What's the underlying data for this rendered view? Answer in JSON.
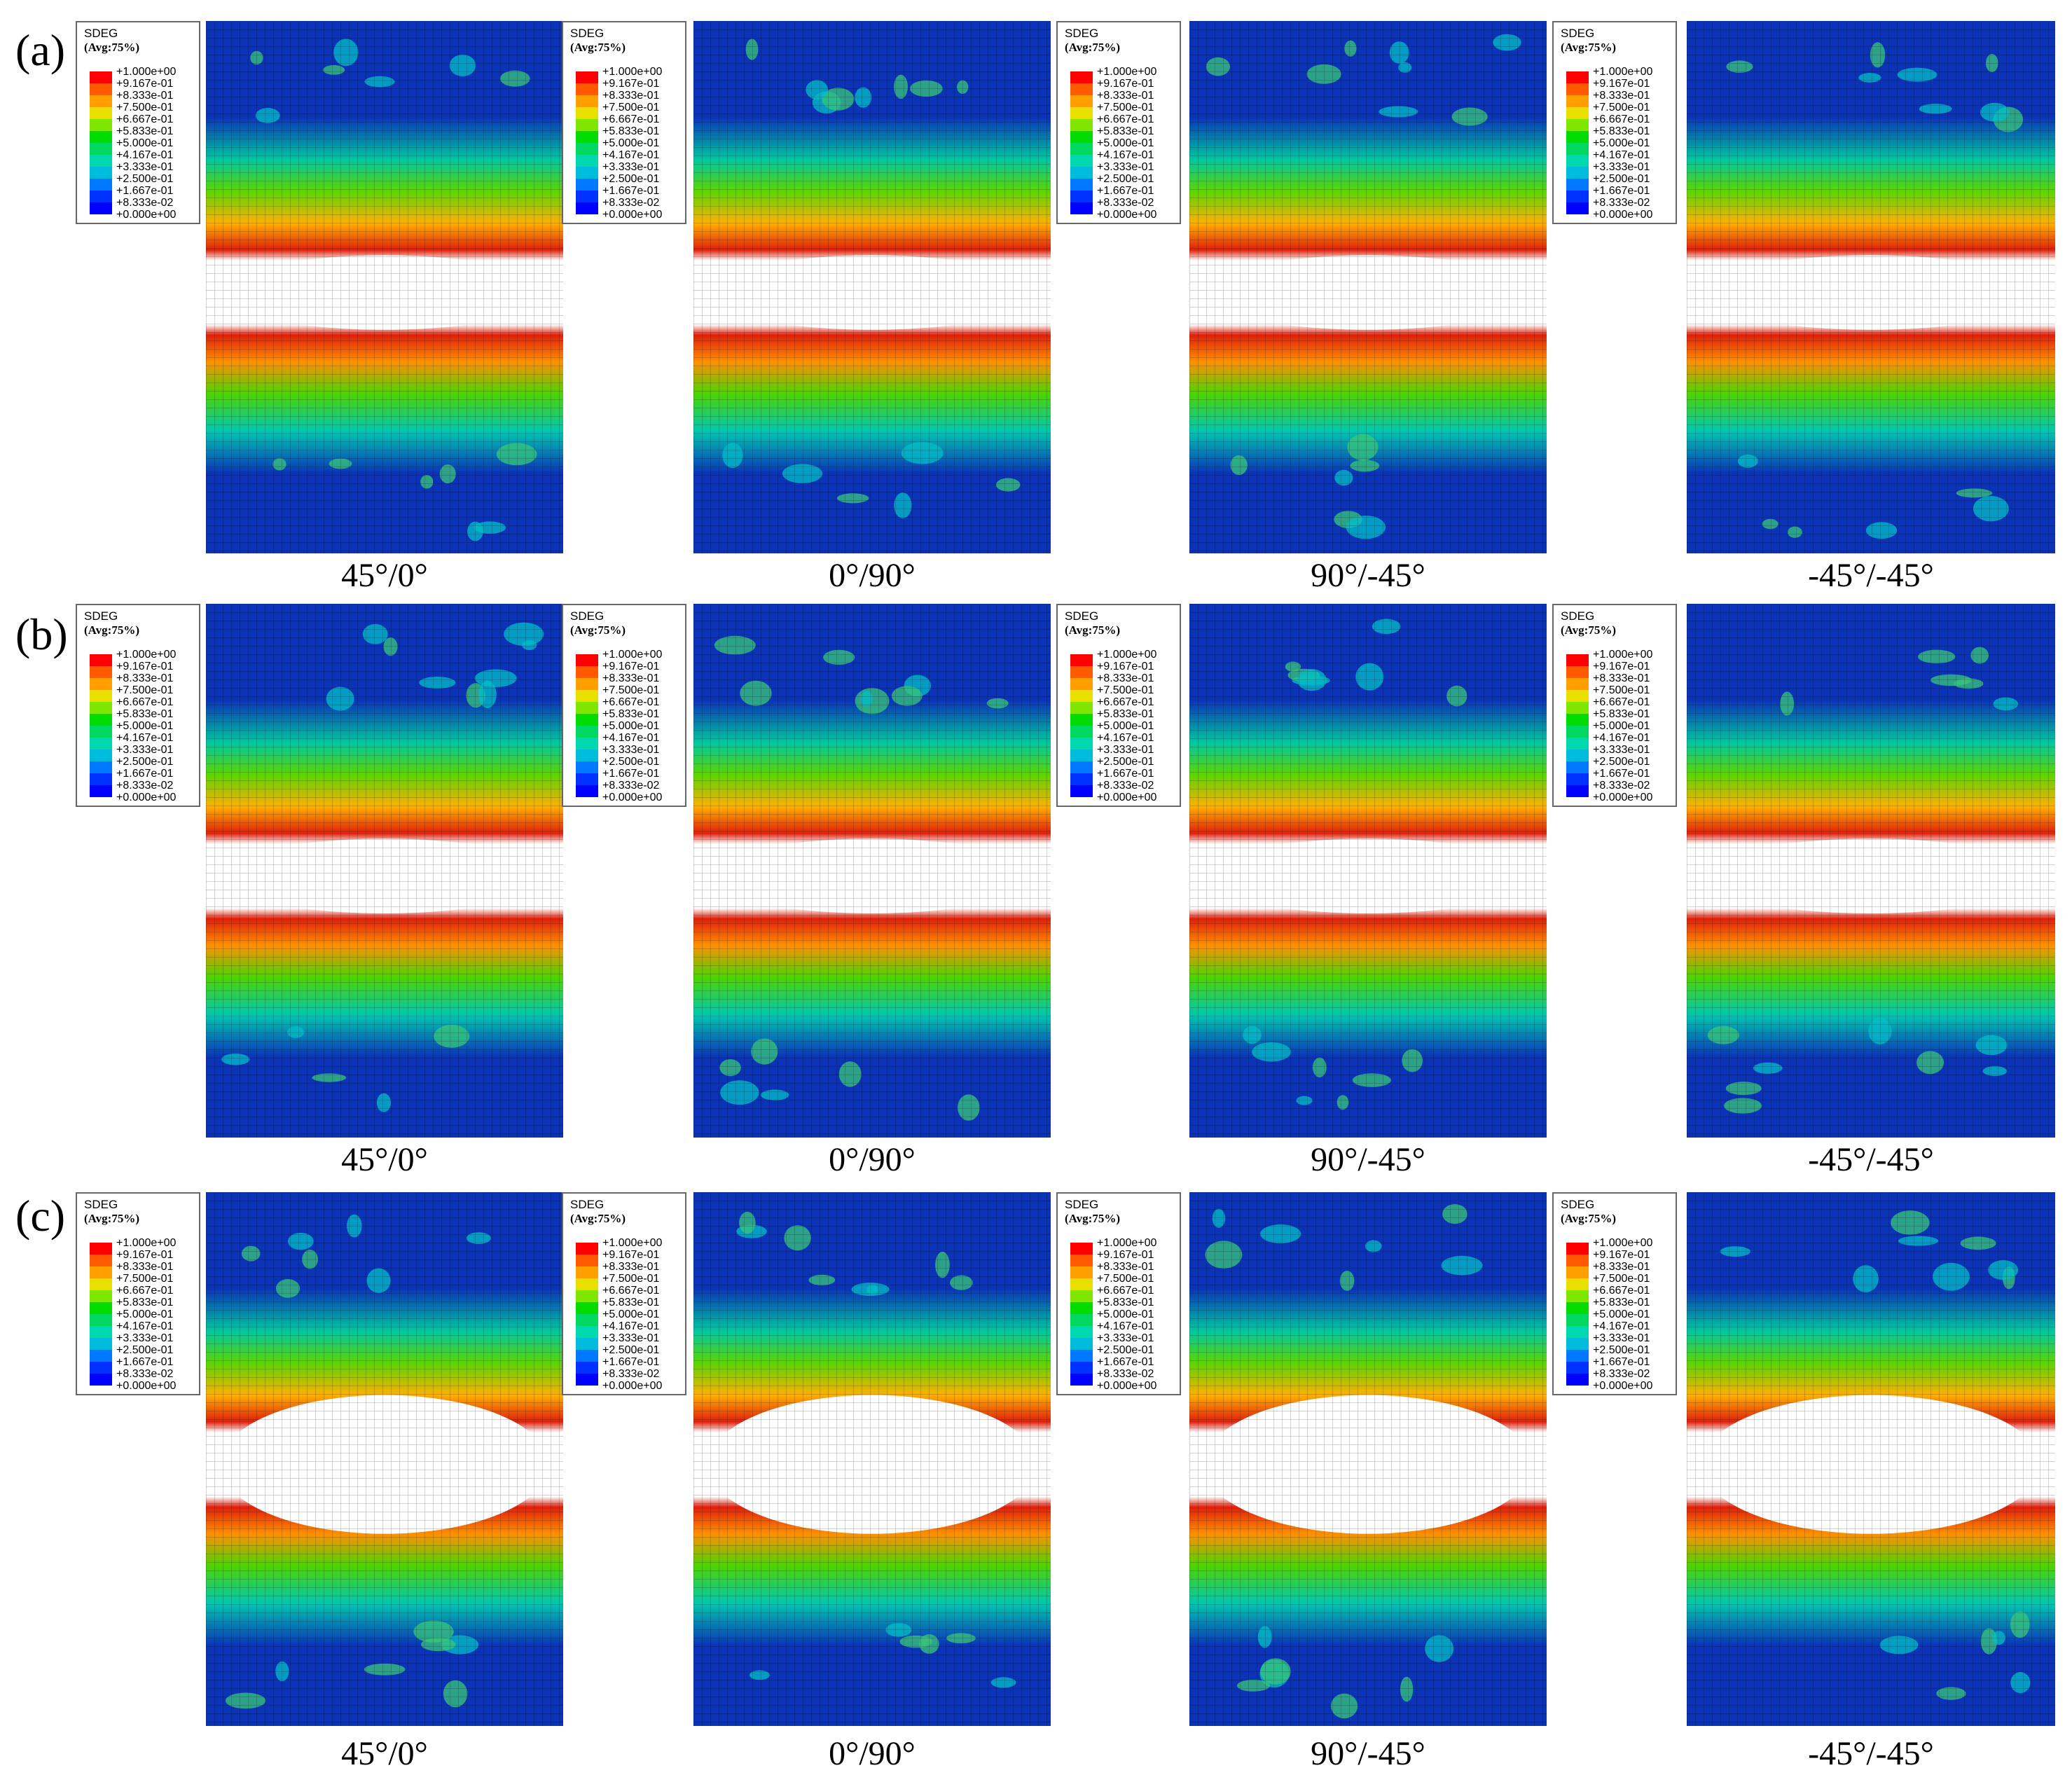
{
  "legend": {
    "title": "SDEG",
    "subtitle": "(Avg:75%)",
    "values": [
      "+1.000e+00",
      "+9.167e-01",
      "+8.333e-01",
      "+7.500e-01",
      "+6.667e-01",
      "+5.833e-01",
      "+5.000e-01",
      "+4.167e-01",
      "+3.333e-01",
      "+2.500e-01",
      "+1.667e-01",
      "+8.333e-02",
      "+0.000e+00"
    ],
    "colors": [
      "#ff0000",
      "#ff5a00",
      "#ff9f00",
      "#e8e000",
      "#7fe600",
      "#00dc00",
      "#00d85f",
      "#00d8b0",
      "#00bcdc",
      "#0078ff",
      "#0032ff",
      "#0000ff"
    ]
  },
  "rows": [
    {
      "label": "(a)",
      "panels": [
        {
          "angle": "45°/0°"
        },
        {
          "angle": "0°/90°"
        },
        {
          "angle": "90°/-45°"
        },
        {
          "angle": "-45°/-45°"
        }
      ]
    },
    {
      "label": "(b)",
      "panels": [
        {
          "angle": "45°/0°"
        },
        {
          "angle": "0°/90°"
        },
        {
          "angle": "90°/-45°"
        },
        {
          "angle": "-45°/-45°"
        }
      ]
    },
    {
      "label": "(c)",
      "panels": [
        {
          "angle": "45°/0°"
        },
        {
          "angle": "0°/90°"
        },
        {
          "angle": "90°/-45°"
        },
        {
          "angle": "-45°/-45°"
        }
      ]
    }
  ]
}
